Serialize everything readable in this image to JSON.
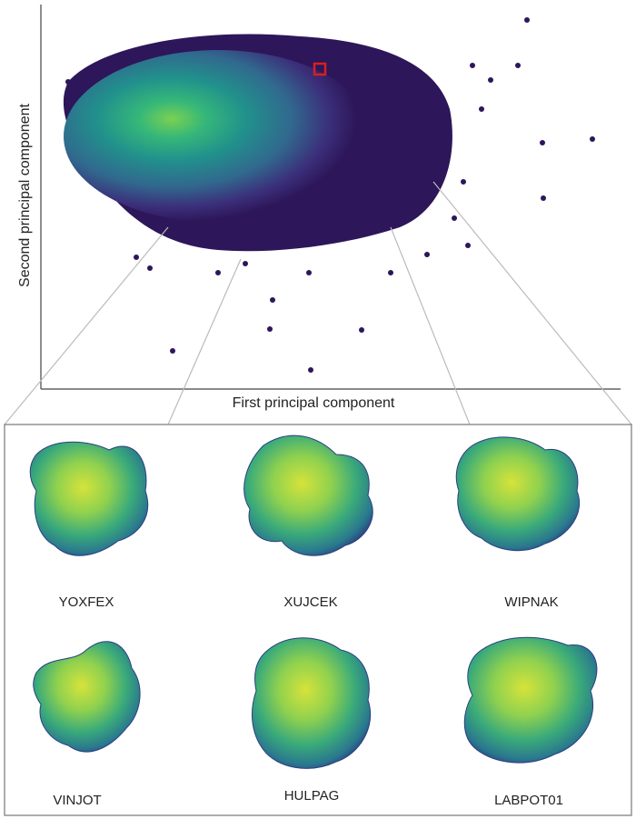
{
  "plot": {
    "x_label": "First principal component",
    "y_label": "Second principal component"
  },
  "molecules": [
    {
      "name": "YOXFEX"
    },
    {
      "name": "XUJCEK"
    },
    {
      "name": "WIPNAK"
    },
    {
      "name": "VINJOT"
    },
    {
      "name": "HULPAG"
    },
    {
      "name": "LABPOT01"
    }
  ]
}
